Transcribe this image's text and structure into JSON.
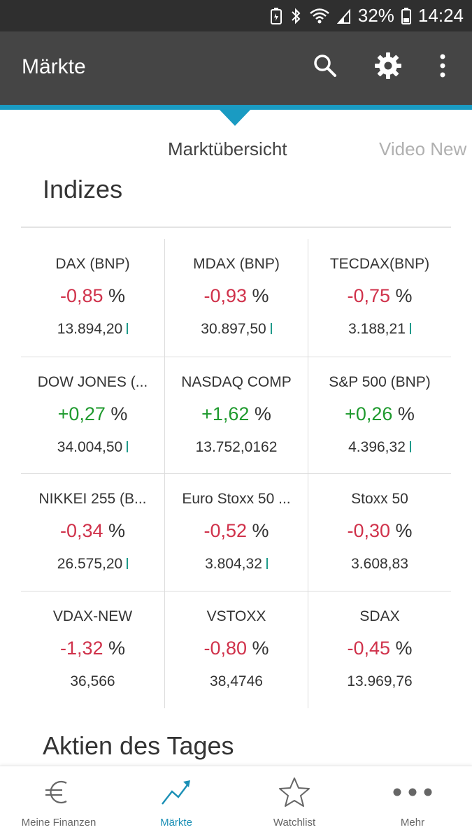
{
  "status_bar": {
    "battery_percent": "32%",
    "time": "14:24",
    "icons": [
      "battery-saver-icon",
      "bluetooth-icon",
      "wifi-icon",
      "signal-icon",
      "battery-icon"
    ]
  },
  "app_bar": {
    "title": "Märkte",
    "actions": [
      "search-icon",
      "gear-icon",
      "more-vert-icon"
    ]
  },
  "tabs": [
    {
      "label": "Marktübersicht",
      "active": true
    },
    {
      "label": "Video New",
      "active": false
    }
  ],
  "sections": {
    "indices_title": "Indizes",
    "stocks_title": "Aktien des Tages"
  },
  "indices": [
    {
      "name": "DAX (BNP)",
      "change": "-0,85",
      "unit": "%",
      "value": "13.894,20",
      "tick": true,
      "direction": "neg"
    },
    {
      "name": "MDAX (BNP)",
      "change": "-0,93",
      "unit": "%",
      "value": "30.897,50",
      "tick": true,
      "direction": "neg"
    },
    {
      "name": "TECDAX(BNP)",
      "change": "-0,75",
      "unit": "%",
      "value": "3.188,21",
      "tick": true,
      "direction": "neg"
    },
    {
      "name": "DOW JONES (...",
      "change": "+0,27",
      "unit": "%",
      "value": "34.004,50",
      "tick": true,
      "direction": "pos"
    },
    {
      "name": "NASDAQ COMP",
      "change": "+1,62",
      "unit": "%",
      "value": "13.752,0162",
      "tick": false,
      "direction": "pos"
    },
    {
      "name": "S&P 500 (BNP)",
      "change": "+0,26",
      "unit": "%",
      "value": "4.396,32",
      "tick": true,
      "direction": "pos"
    },
    {
      "name": "NIKKEI 255 (B...",
      "change": "-0,34",
      "unit": "%",
      "value": "26.575,20",
      "tick": true,
      "direction": "neg"
    },
    {
      "name": "Euro Stoxx 50 ...",
      "change": "-0,52",
      "unit": "%",
      "value": "3.804,32",
      "tick": true,
      "direction": "neg"
    },
    {
      "name": "Stoxx 50",
      "change": "-0,30",
      "unit": "%",
      "value": "3.608,83",
      "tick": false,
      "direction": "neg"
    },
    {
      "name": "VDAX-NEW",
      "change": "-1,32",
      "unit": "%",
      "value": "36,566",
      "tick": false,
      "direction": "neg"
    },
    {
      "name": "VSTOXX",
      "change": "-0,80",
      "unit": "%",
      "value": "38,4746",
      "tick": false,
      "direction": "neg"
    },
    {
      "name": "SDAX",
      "change": "-0,45",
      "unit": "%",
      "value": "13.969,76",
      "tick": false,
      "direction": "neg"
    }
  ],
  "bottom_nav": [
    {
      "label": "Meine Finanzen",
      "icon": "euro-icon",
      "active": false
    },
    {
      "label": "Märkte",
      "icon": "trend-up-icon",
      "active": true
    },
    {
      "label": "Watchlist",
      "icon": "star-icon",
      "active": false
    },
    {
      "label": "Mehr",
      "icon": "more-horiz-icon",
      "active": false
    }
  ],
  "colors": {
    "negative": "#d0324b",
    "positive": "#1f9a2e",
    "accent": "#1a9bc2",
    "app_bar": "#454545"
  }
}
